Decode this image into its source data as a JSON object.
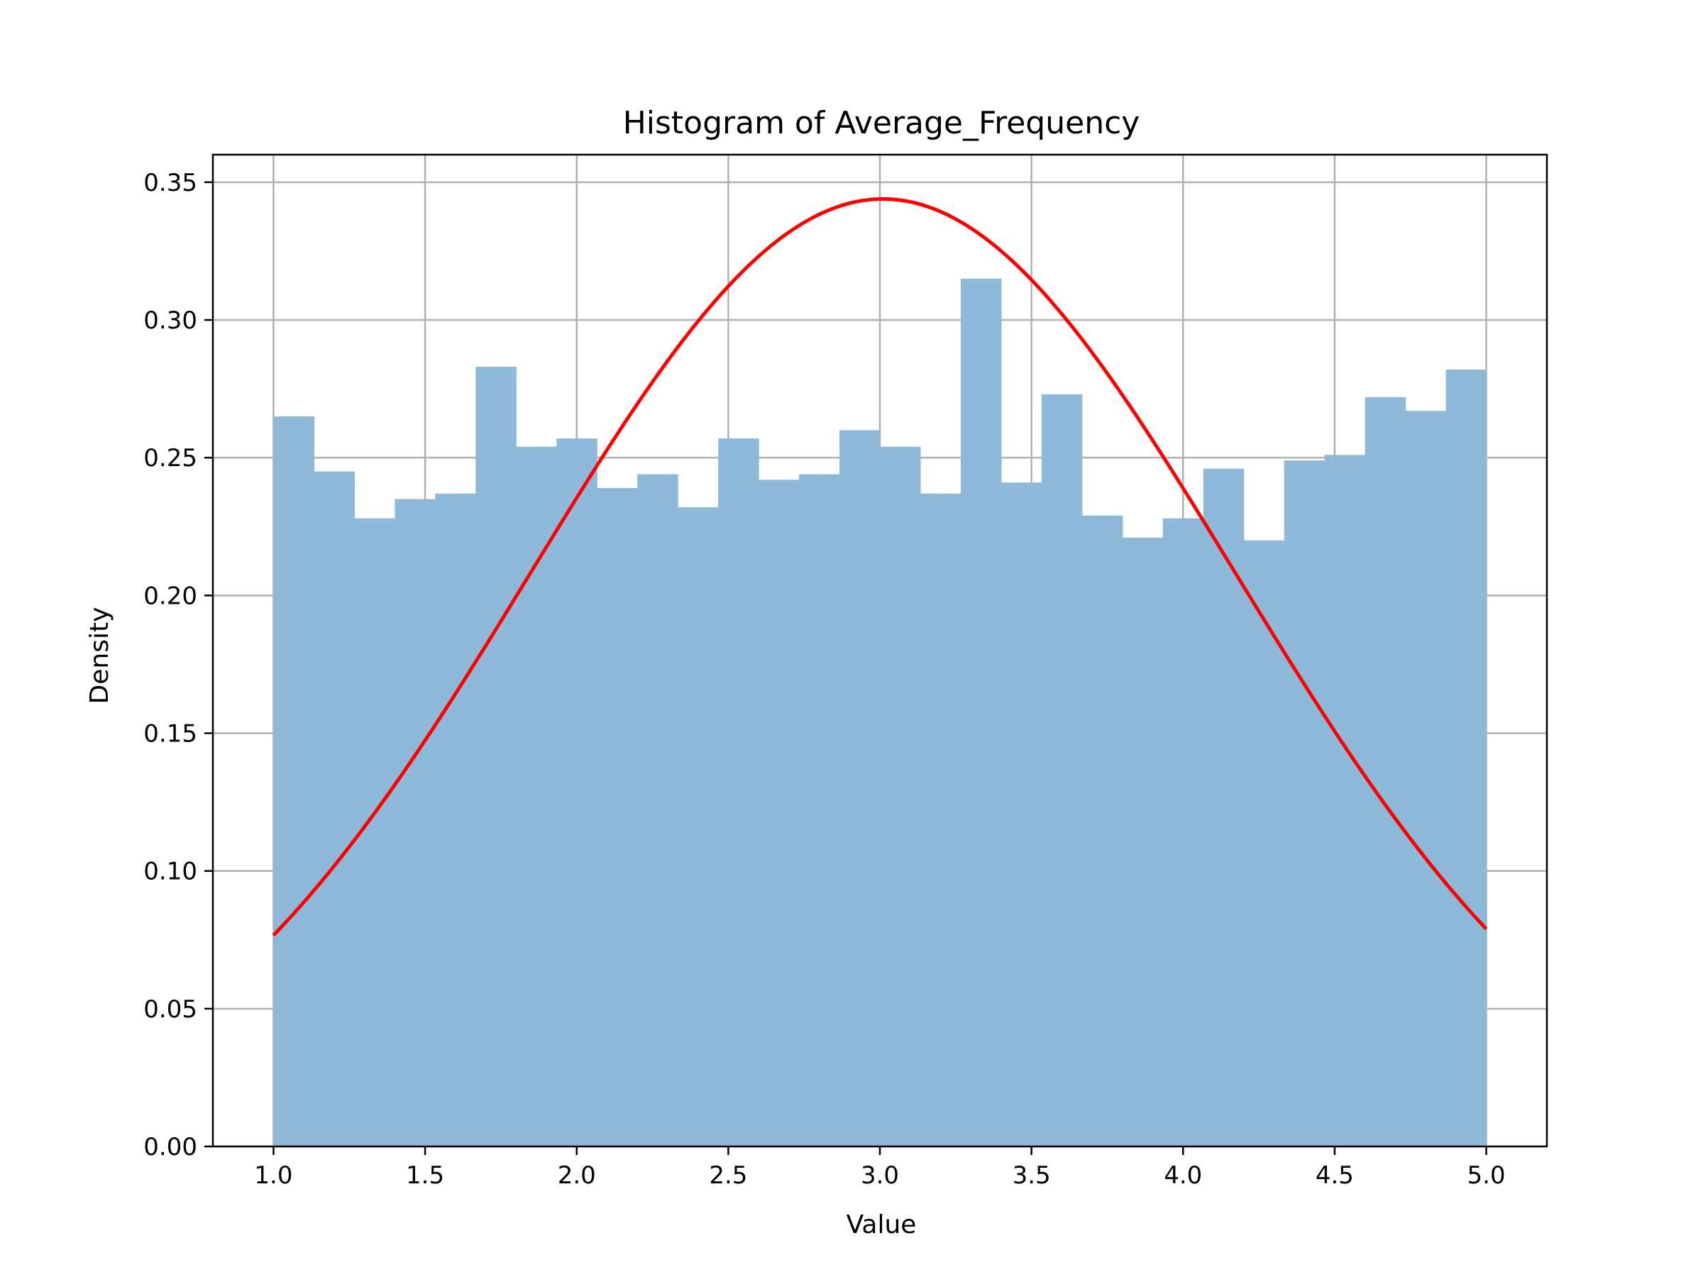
{
  "chart_data": {
    "type": "bar",
    "title": "Histogram of Average_Frequency",
    "xlabel": "Value",
    "ylabel": "Density",
    "xlim": [
      0.8,
      5.2
    ],
    "ylim": [
      0,
      0.36
    ],
    "xticks": [
      "1.0",
      "1.5",
      "2.0",
      "2.5",
      "3.0",
      "3.5",
      "4.0",
      "4.5",
      "5.0"
    ],
    "yticks": [
      "0.00",
      "0.05",
      "0.10",
      "0.15",
      "0.20",
      "0.25",
      "0.30",
      "0.35"
    ],
    "grid": true,
    "bin_range": [
      1.0,
      5.0
    ],
    "bin_count": 30,
    "values": [
      0.265,
      0.245,
      0.228,
      0.235,
      0.237,
      0.283,
      0.254,
      0.257,
      0.239,
      0.244,
      0.232,
      0.257,
      0.242,
      0.244,
      0.26,
      0.254,
      0.237,
      0.315,
      0.241,
      0.273,
      0.229,
      0.221,
      0.228,
      0.246,
      0.22,
      0.249,
      0.251,
      0.272,
      0.267,
      0.282
    ],
    "bar_color": "#8fb9d9",
    "curve": {
      "type": "normal-pdf",
      "mean": 3.01,
      "std": 1.16,
      "x_range": [
        1.0,
        5.0
      ],
      "color": "#ff0000"
    }
  }
}
